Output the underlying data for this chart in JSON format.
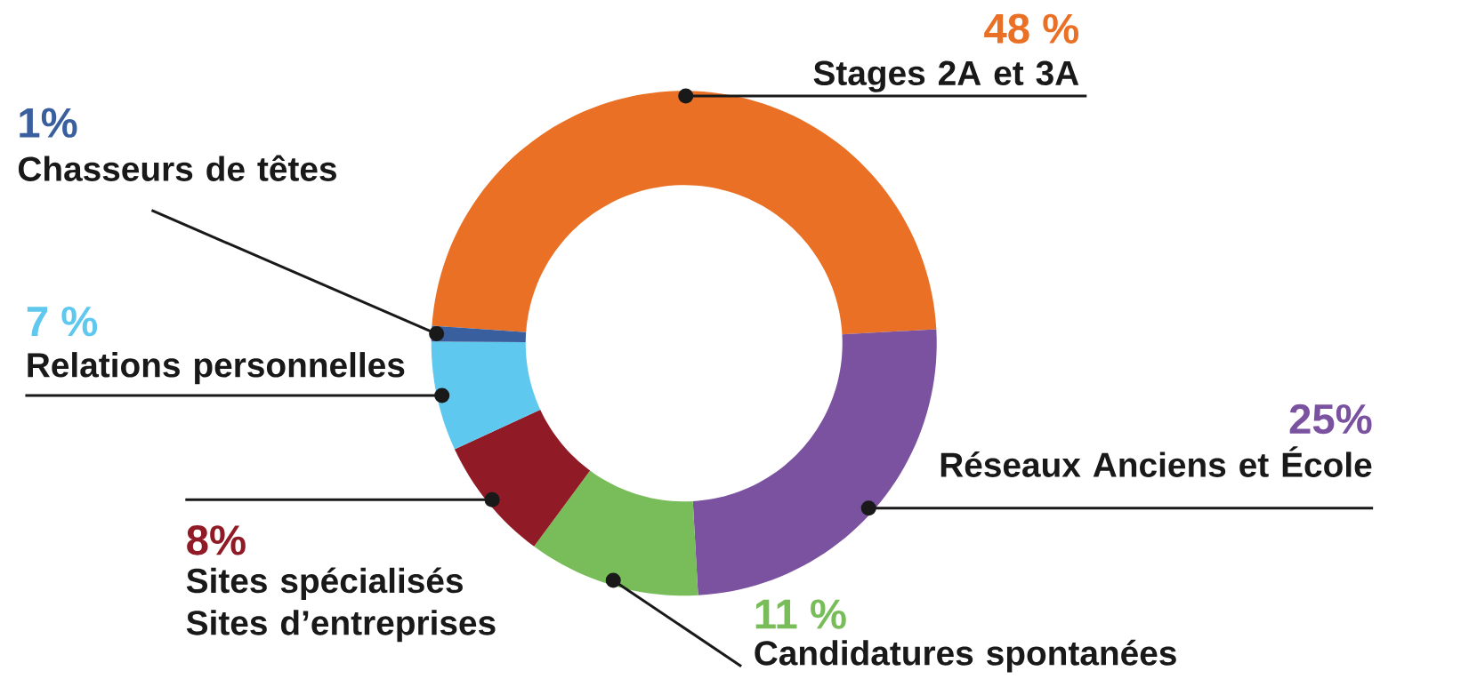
{
  "chart_data": {
    "type": "donut",
    "categories": [
      "Stages 2A et 3A",
      "Réseaux Anciens et École",
      "Candidatures spontanées",
      "Sites spécialisés Sites d’entreprises",
      "Relations personnelles",
      "Chasseurs de têtes"
    ],
    "values": [
      48,
      25,
      11,
      8,
      7,
      1
    ],
    "value_labels": [
      "48 %",
      "25%",
      "11 %",
      "8%",
      "7 %",
      "1%"
    ],
    "colors": [
      "#e97024",
      "#7b52a0",
      "#78bd5a",
      "#901a26",
      "#5ec8ef",
      "#3a5f9e"
    ]
  }
}
